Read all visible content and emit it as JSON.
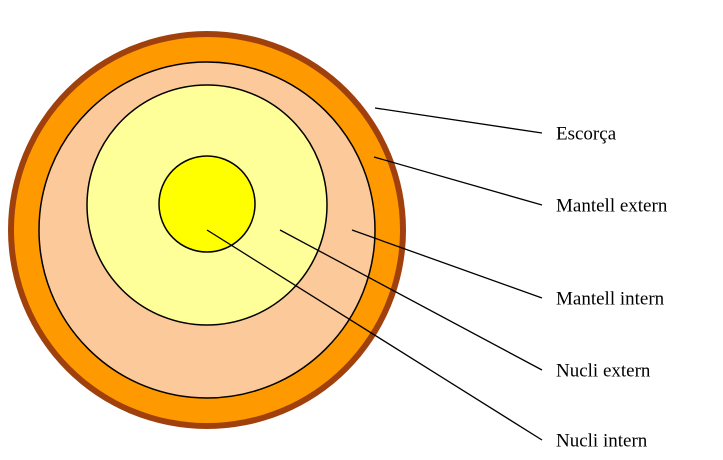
{
  "labels": [
    "Escorça",
    "Mantell extern",
    "Mantell intern",
    "Nucli extern",
    "Nucli intern"
  ]
}
